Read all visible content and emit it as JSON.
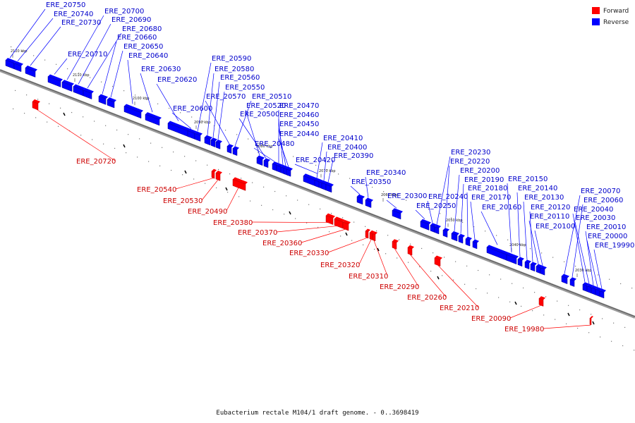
{
  "caption": "Eubacterium rectale M104/1 draft genome. - 0..3698419",
  "legend": {
    "forward": "Forward",
    "reverse": "Reverse"
  },
  "colors": {
    "forward": "#ff0000",
    "reverse": "#0000ff",
    "forward_dark": "#b30000",
    "reverse_dark": "#00008c",
    "axis": "#888888",
    "forward_text": "#cc0000",
    "reverse_text": "#0000cc"
  },
  "scale_ticks": [
    "2120 kbp",
    "2110 kbp",
    "2100 kbp",
    "2090 kbp",
    "2080 kbp",
    "2070 kbp",
    "2060 kbp",
    "2050 kbp",
    "2040 kbp",
    "2030 kbp"
  ],
  "reverse_genes": [
    "ERE_20750",
    "ERE_20740",
    "ERE_20730",
    "ERE_20710",
    "ERE_20700",
    "ERE_20690",
    "ERE_20680",
    "ERE_20660",
    "ERE_20650",
    "ERE_20640",
    "ERE_20630",
    "ERE_20620",
    "ERE_20600",
    "ERE_20590",
    "ERE_20580",
    "ERE_20560",
    "ERE_20550",
    "ERE_20570",
    "ERE_20510",
    "ERE_20520",
    "ERE_20500",
    "ERE_20480",
    "ERE_20470",
    "ERE_20460",
    "ERE_20450",
    "ERE_20440",
    "ERE_20420",
    "ERE_20410",
    "ERE_20400",
    "ERE_20390",
    "ERE_20350",
    "ERE_20340",
    "ERE_20300",
    "ERE_20250",
    "ERE_20240",
    "ERE_20230",
    "ERE_20220",
    "ERE_20200",
    "ERE_20190",
    "ERE_20180",
    "ERE_20170",
    "ERE_20160",
    "ERE_20150",
    "ERE_20140",
    "ERE_20130",
    "ERE_20120",
    "ERE_20110",
    "ERE_20100",
    "ERE_20070",
    "ERE_20060",
    "ERE_20040",
    "ERE_20030",
    "ERE_20010",
    "ERE_20000",
    "ERE_19990"
  ],
  "forward_genes": [
    "ERE_20720",
    "ERE_20540",
    "ERE_20530",
    "ERE_20490",
    "ERE_20380",
    "ERE_20370",
    "ERE_20360",
    "ERE_20330",
    "ERE_20320",
    "ERE_20310",
    "ERE_20290",
    "ERE_20260",
    "ERE_20210",
    "ERE_20090",
    "ERE_19980"
  ]
}
